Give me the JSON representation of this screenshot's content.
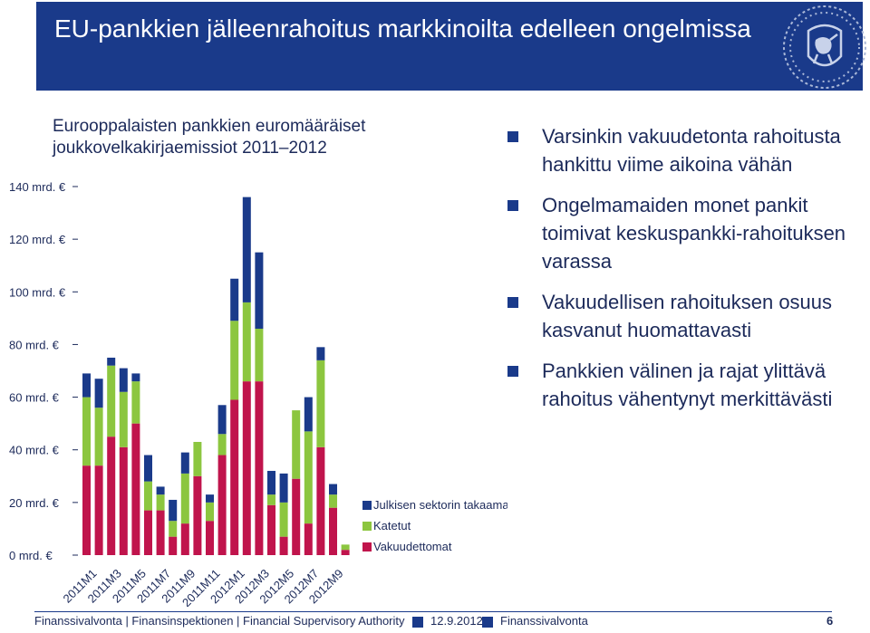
{
  "slide": {
    "title": "EU-pankkien jälleenrahoitus markkinoilta edelleen ongelmissa"
  },
  "colors": {
    "header_bg": "#1a3a8a",
    "text": "#1c2a5a",
    "series_guaranteed_public": "#1a3a8a",
    "series_covered": "#8cc63f",
    "series_unsecured": "#c0144c"
  },
  "logo": {
    "icon": "lion-coat-of-arms-icon"
  },
  "bullets": [
    "Varsinkin vakuudetonta rahoitusta hankittu viime aikoina vähän",
    "Ongelmamaiden monet pankit toimivat keskuspankki-rahoituksen varassa",
    "Vakuudellisen rahoituksen osuus kasvanut huomattavasti",
    "Pankkien välinen ja rajat ylittävä rahoitus vähentynyt merkittävästi"
  ],
  "chart_data": {
    "type": "bar",
    "stacked": true,
    "title": "Eurooppalaisten pankkien euromääräiset joukkovelkakirjaemissiot 2011–2012",
    "categories": [
      "2011M1",
      "2011M2",
      "2011M3",
      "2011M4",
      "2011M5",
      "2011M6",
      "2011M7",
      "2011M8",
      "2011M9",
      "2011M10",
      "2011M11",
      "2011M12",
      "2012M1",
      "2012M2",
      "2012M3",
      "2012M4",
      "2012M5",
      "2012M6",
      "2012M7",
      "2012M8",
      "2012M9",
      "2012M10"
    ],
    "tick_labels": [
      "2011M1",
      "2011M3",
      "2011M5",
      "2011M7",
      "2011M9",
      "2011M11",
      "2012M1",
      "2012M3",
      "2012M5",
      "2012M7",
      "2012M9"
    ],
    "yticks": [
      "0 mrd. €",
      "20 mrd. €",
      "40 mrd. €",
      "60 mrd. €",
      "80 mrd. €",
      "100 mrd. €",
      "120 mrd. €",
      "140 mrd. €"
    ],
    "ylim": [
      0,
      140
    ],
    "series": [
      {
        "name": "Vakuudettomat",
        "values": [
          34,
          34,
          45,
          41,
          50,
          17,
          17,
          7,
          12,
          30,
          13,
          38,
          59,
          66,
          66,
          19,
          7,
          29,
          12,
          41,
          18,
          2
        ]
      },
      {
        "name": "Katetut",
        "values": [
          26,
          22,
          27,
          21,
          16,
          11,
          6,
          6,
          19,
          13,
          7,
          8,
          30,
          30,
          20,
          4,
          13,
          26,
          35,
          33,
          5,
          2
        ]
      },
      {
        "name": "Julkisen sektorin takaamat",
        "values": [
          9,
          11,
          3,
          9,
          3,
          10,
          3,
          8,
          8,
          0,
          3,
          11,
          16,
          40,
          29,
          9,
          11,
          0,
          13,
          5,
          4,
          0
        ]
      }
    ],
    "legend_position": "right",
    "legend_order": [
      "Julkisen sektorin takaamat",
      "Katetut",
      "Vakuudettomat"
    ],
    "grid": false
  },
  "footer": {
    "organization": "Finanssivalvonta | Finansinspektionen | Financial Supervisory Authority",
    "date": "12.9.2012",
    "brand": "Finanssivalvonta",
    "page": "6"
  }
}
